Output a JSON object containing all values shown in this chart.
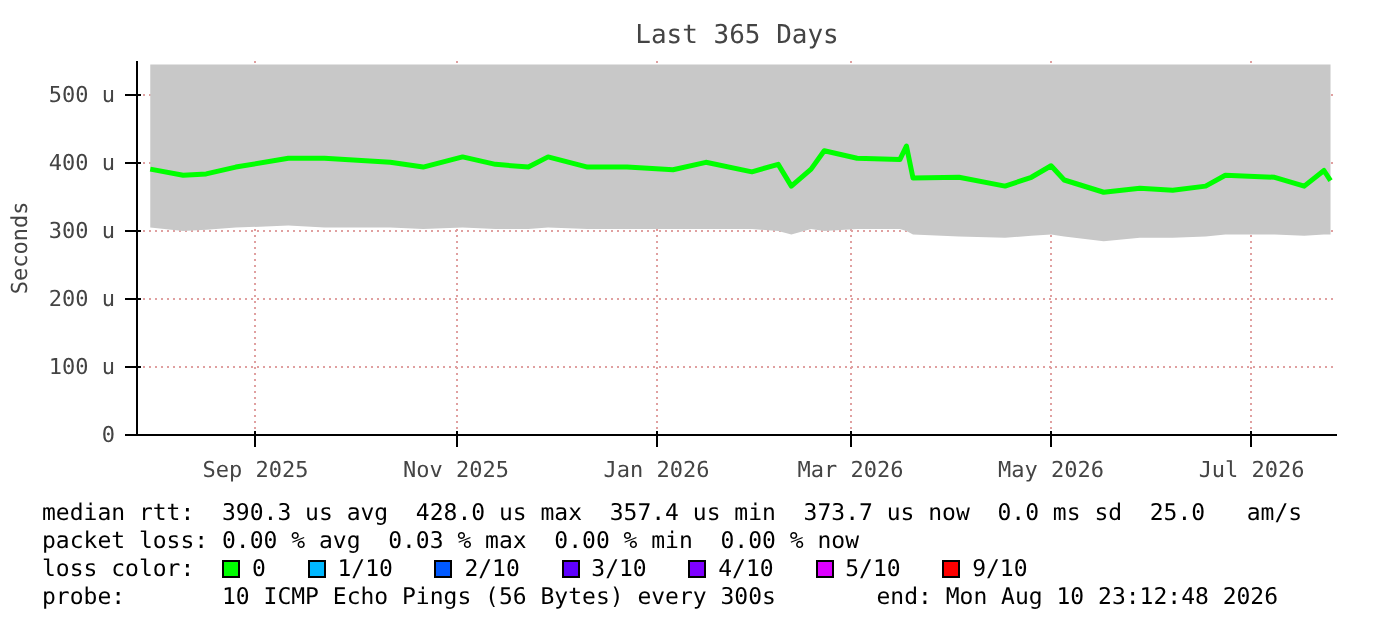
{
  "chart_data": {
    "type": "line",
    "title": "Last 365 Days",
    "ylabel": "Seconds",
    "legend_title": "loss color:",
    "x": [
      "2025-08-15",
      "2025-08-25",
      "2025-09-01",
      "2025-09-10",
      "2025-09-26",
      "2025-10-07",
      "2025-10-27",
      "2025-11-06",
      "2025-11-18",
      "2025-11-28",
      "2025-12-08",
      "2025-12-14",
      "2025-12-26",
      "2026-01-07",
      "2026-01-21",
      "2026-01-31",
      "2026-02-14",
      "2026-02-22",
      "2026-02-26",
      "2026-03-04",
      "2026-03-08",
      "2026-03-18",
      "2026-03-31",
      "2026-04-02",
      "2026-04-04",
      "2026-04-18",
      "2026-05-02",
      "2026-05-10",
      "2026-05-16",
      "2026-05-20",
      "2026-06-01",
      "2026-06-12",
      "2026-06-22",
      "2026-07-02",
      "2026-07-08",
      "2026-07-23",
      "2026-08-01",
      "2026-08-07",
      "2026-08-09"
    ],
    "series": [
      {
        "name": "0",
        "color": "#00ff00",
        "values": [
          391,
          382,
          384,
          394,
          407,
          407,
          401,
          394,
          409,
          398,
          394,
          409,
          394,
          394,
          390,
          401,
          387,
          398,
          366,
          391,
          418,
          407,
          405,
          425,
          378,
          379,
          366,
          379,
          396,
          375,
          357,
          363,
          360,
          366,
          382,
          379,
          366,
          389,
          374
        ],
        "lower": [
          305,
          300,
          302,
          305,
          308,
          305,
          305,
          303,
          305,
          303,
          303,
          305,
          303,
          303,
          303,
          303,
          303,
          300,
          295,
          303,
          300,
          303,
          303,
          300,
          295,
          292,
          290,
          293,
          295,
          292,
          285,
          290,
          290,
          292,
          295,
          295,
          293,
          295,
          295
        ],
        "upper": [
          545,
          545,
          545,
          545,
          545,
          545,
          545,
          545,
          545,
          545,
          545,
          545,
          545,
          545,
          545,
          545,
          545,
          545,
          545,
          545,
          545,
          545,
          545,
          545,
          545,
          545,
          545,
          545,
          545,
          545,
          545,
          545,
          545,
          545,
          545,
          545,
          545,
          545,
          545
        ]
      },
      {
        "name": "1/10",
        "color": "#00b8ff",
        "values": [
          null,
          null,
          null,
          null,
          null,
          null,
          null,
          null,
          null,
          null,
          null,
          null,
          null,
          null,
          null,
          null,
          null,
          null,
          null,
          null,
          null,
          null,
          null,
          null,
          null,
          null,
          null,
          null,
          null,
          null,
          null,
          null,
          null,
          null,
          null,
          null,
          null,
          null,
          null
        ]
      },
      {
        "name": "2/10",
        "color": "#0059ff",
        "values": [
          null,
          null,
          null,
          null,
          null,
          null,
          null,
          null,
          null,
          null,
          null,
          null,
          null,
          null,
          null,
          null,
          null,
          null,
          null,
          null,
          null,
          null,
          null,
          null,
          null,
          null,
          null,
          null,
          null,
          null,
          null,
          null,
          null,
          null,
          null,
          null,
          null,
          null,
          null
        ]
      },
      {
        "name": "3/10",
        "color": "#5e00ff",
        "values": [
          null,
          null,
          null,
          null,
          null,
          null,
          null,
          null,
          null,
          null,
          null,
          null,
          null,
          null,
          null,
          null,
          null,
          null,
          null,
          null,
          null,
          null,
          null,
          null,
          null,
          null,
          null,
          null,
          null,
          null,
          null,
          null,
          null,
          null,
          null,
          null,
          null,
          null,
          null
        ]
      },
      {
        "name": "4/10",
        "color": "#7e00ff",
        "values": [
          null,
          null,
          null,
          null,
          null,
          null,
          null,
          null,
          null,
          null,
          null,
          null,
          null,
          null,
          null,
          null,
          null,
          null,
          null,
          null,
          null,
          null,
          null,
          null,
          null,
          null,
          null,
          null,
          null,
          null,
          null,
          null,
          null,
          null,
          null,
          null,
          null,
          null,
          null
        ]
      },
      {
        "name": "5/10",
        "color": "#dd00ff",
        "values": [
          null,
          null,
          null,
          null,
          null,
          null,
          null,
          null,
          null,
          null,
          null,
          null,
          null,
          null,
          null,
          null,
          null,
          null,
          null,
          null,
          null,
          null,
          null,
          null,
          null,
          null,
          null,
          null,
          null,
          null,
          null,
          null,
          null,
          null,
          null,
          null,
          null,
          null,
          null
        ]
      },
      {
        "name": "9/10",
        "color": "#ff0000",
        "values": [
          null,
          null,
          null,
          null,
          null,
          null,
          null,
          null,
          null,
          null,
          null,
          null,
          null,
          null,
          null,
          null,
          null,
          null,
          null,
          null,
          null,
          null,
          null,
          null,
          null,
          null,
          null,
          null,
          null,
          null,
          null,
          null,
          null,
          null,
          null,
          null,
          null,
          null,
          null
        ]
      }
    ],
    "xlim": [
      "2025-08-10T23:12",
      "2026-08-10T23:12"
    ],
    "xticks": [
      {
        "value": "2025-09-16",
        "label": "Sep 2025"
      },
      {
        "value": "2025-11-16",
        "label": "Nov 2025"
      },
      {
        "value": "2026-01-16",
        "label": "Jan 2026"
      },
      {
        "value": "2026-03-16",
        "label": "Mar 2026"
      },
      {
        "value": "2026-05-16",
        "label": "May 2026"
      },
      {
        "value": "2026-07-16",
        "label": "Jul 2026"
      }
    ],
    "ylim": [
      0,
      550
    ],
    "yticks": [
      0,
      {
        "value": 100,
        "label": "100 u"
      },
      {
        "value": 200,
        "label": "200 u"
      },
      {
        "value": 300,
        "label": "300 u"
      },
      {
        "value": 400,
        "label": "400 u"
      },
      {
        "value": 500,
        "label": "500 u"
      }
    ],
    "grid": true,
    "legend": "bottom",
    "marker": "none",
    "line_style": "solid",
    "annotations": [
      "median rtt:  390.3 us avg  428.0 us max  357.4 us min  373.7 us now  0.0 ms sd  25.0   am/s",
      "packet loss: 0.00 % avg  0.03 % max  0.00 % min  0.00 % now",
      "probe:       10 ICMP Echo Pings (56 Bytes) every 300s",
      "end: Mon Aug 10 23:12:48 2026"
    ]
  }
}
